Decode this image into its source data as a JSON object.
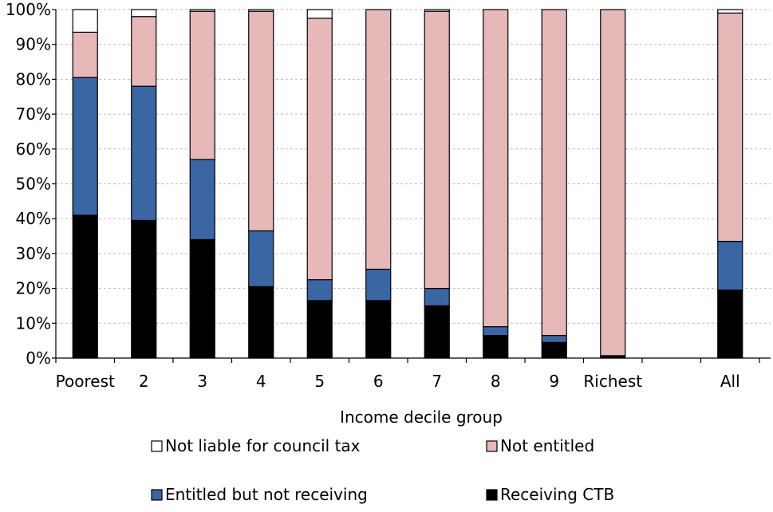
{
  "colors": {
    "receiving": "#000000",
    "entitled": "#3a66a4",
    "not_entitled": "#e6b8b8",
    "not_liable": "#ffffff",
    "grid": "#bdbdbd"
  },
  "chart_data": {
    "type": "bar",
    "stacked": true,
    "xlabel": "Income decile group",
    "ylabel": "",
    "ylim": [
      0,
      100
    ],
    "yticks": [
      "0%",
      "10%",
      "20%",
      "30%",
      "40%",
      "50%",
      "60%",
      "70%",
      "80%",
      "90%",
      "100%"
    ],
    "categories": [
      "Poorest",
      "2",
      "3",
      "4",
      "5",
      "6",
      "7",
      "8",
      "9",
      "Richest",
      "All"
    ],
    "grid": "horizontal",
    "legend_placement": "bottom",
    "series": [
      {
        "name": "Receiving CTB",
        "key": "receiving",
        "values": [
          41,
          39.5,
          34,
          20.5,
          16.5,
          16.5,
          15,
          6.5,
          4.5,
          0.7,
          19.5
        ]
      },
      {
        "name": "Entitled but not receiving",
        "key": "entitled",
        "values": [
          39.5,
          38.5,
          23,
          16,
          6,
          9,
          5,
          2.5,
          2,
          0,
          14
        ]
      },
      {
        "name": "Not entitled",
        "key": "not_entitled",
        "values": [
          13,
          20,
          42.5,
          63,
          75,
          74.5,
          79.5,
          91,
          93.5,
          99.3,
          65.5
        ]
      },
      {
        "name": "Not liable for council tax",
        "key": "not_liable",
        "values": [
          6.5,
          2,
          0.5,
          0.5,
          2.5,
          0,
          0.5,
          0,
          0,
          0,
          1
        ]
      }
    ],
    "legend": [
      {
        "label": "Not liable for council tax",
        "key": "not_liable"
      },
      {
        "label": "Not entitled",
        "key": "not_entitled"
      },
      {
        "label": "Entitled but not receiving",
        "key": "entitled"
      },
      {
        "label": "Receiving CTB",
        "key": "receiving"
      }
    ]
  }
}
